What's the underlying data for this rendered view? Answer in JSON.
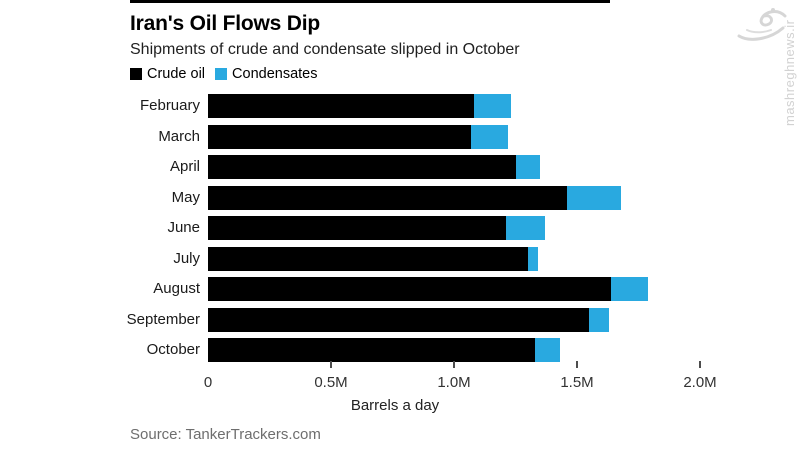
{
  "header": {
    "title": "Iran's Oil Flows Dip",
    "subtitle": "Shipments of crude and condensate slipped in October"
  },
  "legend": [
    {
      "label": "Crude oil",
      "color": "#000000"
    },
    {
      "label": "Condensates",
      "color": "#29A9E0"
    }
  ],
  "chart_data": {
    "type": "bar",
    "orientation": "horizontal",
    "stacked": true,
    "title": "Iran's Oil Flows Dip",
    "subtitle": "Shipments of crude and condensate slipped in October",
    "categories": [
      "February",
      "March",
      "April",
      "May",
      "June",
      "July",
      "August",
      "September",
      "October"
    ],
    "series": [
      {
        "name": "Crude oil",
        "color": "#000000",
        "values": [
          1.08,
          1.07,
          1.25,
          1.46,
          1.21,
          1.3,
          1.64,
          1.55,
          1.33
        ]
      },
      {
        "name": "Condensates",
        "color": "#29A9E0",
        "values": [
          0.15,
          0.15,
          0.1,
          0.22,
          0.16,
          0.04,
          0.15,
          0.08,
          0.1
        ]
      }
    ],
    "xlabel": "Barrels a day",
    "xlim": [
      0,
      2.0
    ],
    "x_ticks": [
      {
        "value": 0,
        "label": "0"
      },
      {
        "value": 0.5,
        "label": "0.5M"
      },
      {
        "value": 1.0,
        "label": "1.0M"
      },
      {
        "value": 1.5,
        "label": "1.5M"
      },
      {
        "value": 2.0,
        "label": "2.0M"
      }
    ],
    "grid": false,
    "legend_position": "top-left"
  },
  "footer": {
    "source": "Source: TankerTrackers.com"
  },
  "watermark": {
    "site": "mashreghnews.ir"
  }
}
